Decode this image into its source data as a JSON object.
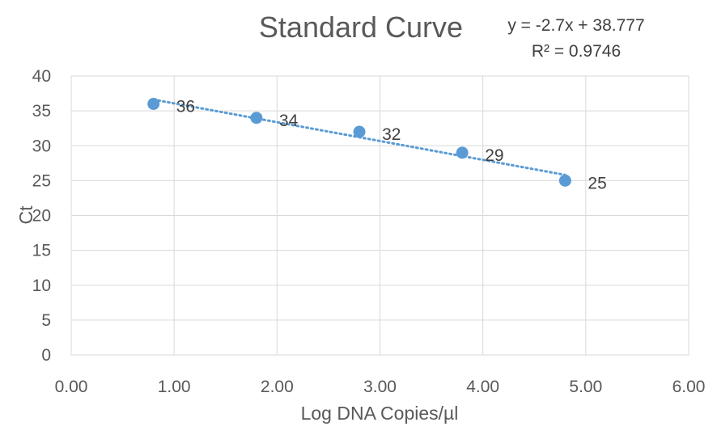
{
  "chart_data": {
    "type": "scatter",
    "title": "Standard Curve",
    "xlabel": "Log DNA Copies/µl",
    "ylabel": "Ct",
    "xlim": [
      0,
      6
    ],
    "ylim": [
      0,
      40
    ],
    "x_ticks": [
      "0.00",
      "1.00",
      "2.00",
      "3.00",
      "4.00",
      "5.00",
      "6.00"
    ],
    "y_ticks": [
      "0",
      "5",
      "10",
      "15",
      "20",
      "25",
      "30",
      "35",
      "40"
    ],
    "grid": true,
    "series": [
      {
        "x": [
          0.8,
          1.8,
          2.8,
          3.8,
          4.8
        ],
        "y": [
          36,
          34,
          32,
          29,
          25
        ],
        "data_labels": [
          "36",
          "34",
          "32",
          "29",
          "25"
        ]
      }
    ],
    "trendline": {
      "type": "linear",
      "slope": -2.7,
      "intercept": 38.777,
      "equation": "y = -2.7x + 38.777",
      "r_squared": "R² = 0.9746"
    },
    "colors": {
      "marker": "#5b9bd5",
      "trendline": "#5b9bd5",
      "grid": "#d9d9d9",
      "text": "#595959"
    }
  }
}
